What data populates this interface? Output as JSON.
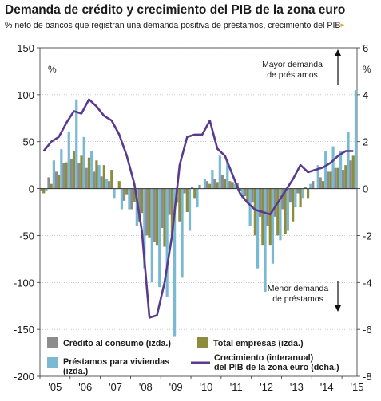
{
  "title": "Demanda de crédito y crecimiento del PIB de la zona euro",
  "subtitle": "% neto de bancos que registran una demanda positiva de préstamos, crecimiento del PIB",
  "subtitle_mark": "▸",
  "colors": {
    "consumo": "#8c8c8c",
    "viviendas": "#7ab9d4",
    "empresas": "#8c8c3c",
    "pib": "#5a3a8c",
    "axis": "#333333",
    "grid": "#aaaaaa"
  },
  "annotations": {
    "up": "Mayor demanda\nde préstamos",
    "down": "Menor demanda\nde préstamos"
  },
  "chart_data": {
    "type": "bar",
    "title": "Demanda de crédito y crecimiento del PIB de la zona euro",
    "subtitle": "% neto de bancos que registran una demanda positiva de préstamos, crecimiento del PIB",
    "ylabel_left": "%",
    "ylabel_right": "%",
    "ylim_left": [
      -200,
      150
    ],
    "ylim_right": [
      -8,
      6
    ],
    "yticks_left": [
      150,
      100,
      50,
      0,
      -50,
      -100,
      -150,
      -200
    ],
    "yticks_right": [
      6,
      4,
      2,
      0,
      -2,
      -4,
      -6,
      -8
    ],
    "x_start": 2005.0,
    "x_end": 2015.5,
    "xtick_labels": [
      "'05",
      "'06",
      "'07",
      "'08",
      "'09",
      "'10",
      "'11",
      "'12",
      "'13",
      "'14",
      "'15"
    ],
    "quarters": [
      "2005 T1",
      "2005 T2",
      "2005 T3",
      "2005 T4",
      "2006 T1",
      "2006 T2",
      "2006 T3",
      "2006 T4",
      "2007 T1",
      "2007 T2",
      "2007 T3",
      "2007 T4",
      "2008 T1",
      "2008 T2",
      "2008 T3",
      "2008 T4",
      "2009 T1",
      "2009 T2",
      "2009 T3",
      "2009 T4",
      "2010 T1",
      "2010 T2",
      "2010 T3",
      "2010 T4",
      "2011 T1",
      "2011 T2",
      "2011 T3",
      "2011 T4",
      "2012 T1",
      "2012 T2",
      "2012 T3",
      "2012 T4",
      "2013 T1",
      "2013 T2",
      "2013 T3",
      "2013 T4",
      "2014 T1",
      "2014 T2",
      "2014 T3",
      "2014 T4",
      "2015 T1",
      "2015 T2"
    ],
    "series": [
      {
        "name": "Crédito al consumo (izda.)",
        "values": [
          -2,
          12,
          18,
          27,
          32,
          27,
          22,
          18,
          13,
          8,
          0,
          -13,
          -22,
          -35,
          -50,
          -57,
          -42,
          -28,
          -15,
          -5,
          2,
          4,
          8,
          10,
          15,
          8,
          6,
          -8,
          -15,
          -30,
          -40,
          -30,
          -22,
          -15,
          -5,
          2,
          8,
          12,
          18,
          22,
          20,
          30
        ]
      },
      {
        "name": "Total empresas (izda.)",
        "values": [
          -5,
          5,
          15,
          28,
          40,
          35,
          33,
          30,
          25,
          20,
          8,
          -6,
          -14,
          -26,
          -52,
          -60,
          -62,
          -52,
          -35,
          -25,
          -10,
          0,
          5,
          7,
          10,
          7,
          -3,
          -15,
          -50,
          -60,
          -60,
          -50,
          -48,
          -35,
          -20,
          -10,
          0,
          8,
          18,
          22,
          25,
          35
        ]
      },
      {
        "name": "Préstamos para viviendas (izda.)",
        "values": [
          -2,
          30,
          42,
          60,
          95,
          55,
          40,
          25,
          10,
          -10,
          -22,
          -22,
          -40,
          -85,
          -100,
          -105,
          -115,
          -158,
          -95,
          -45,
          -20,
          10,
          20,
          35,
          30,
          5,
          -10,
          -40,
          -85,
          -110,
          -80,
          -55,
          -45,
          -20,
          -10,
          5,
          25,
          40,
          45,
          40,
          60,
          105
        ]
      },
      {
        "name": "Crecimiento (interanual) del PIB de la zona euro (dcha.)",
        "values": [
          1.6,
          2.0,
          2.2,
          2.8,
          3.3,
          3.2,
          3.8,
          3.5,
          3.1,
          2.9,
          2.3,
          1.4,
          0.2,
          -1.8,
          -5.5,
          -5.4,
          -4.0,
          -2.0,
          1.0,
          2.2,
          2.3,
          2.3,
          2.9,
          1.7,
          1.4,
          0.6,
          -0.2,
          -0.6,
          -0.9,
          -1.0,
          -1.1,
          -0.6,
          -0.1,
          0.4,
          1.0,
          0.7,
          0.8,
          0.9,
          1.1,
          1.4,
          1.6,
          1.6
        ]
      }
    ],
    "legend": {
      "placement": "bottom",
      "items": [
        "Crédito al consumo (izda.)",
        "Total empresas (izda.)",
        "Préstamos para viviendas (izda.)",
        "Crecimiento (interanual) del PIB de la zona euro (dcha.)"
      ]
    },
    "grid": true
  }
}
